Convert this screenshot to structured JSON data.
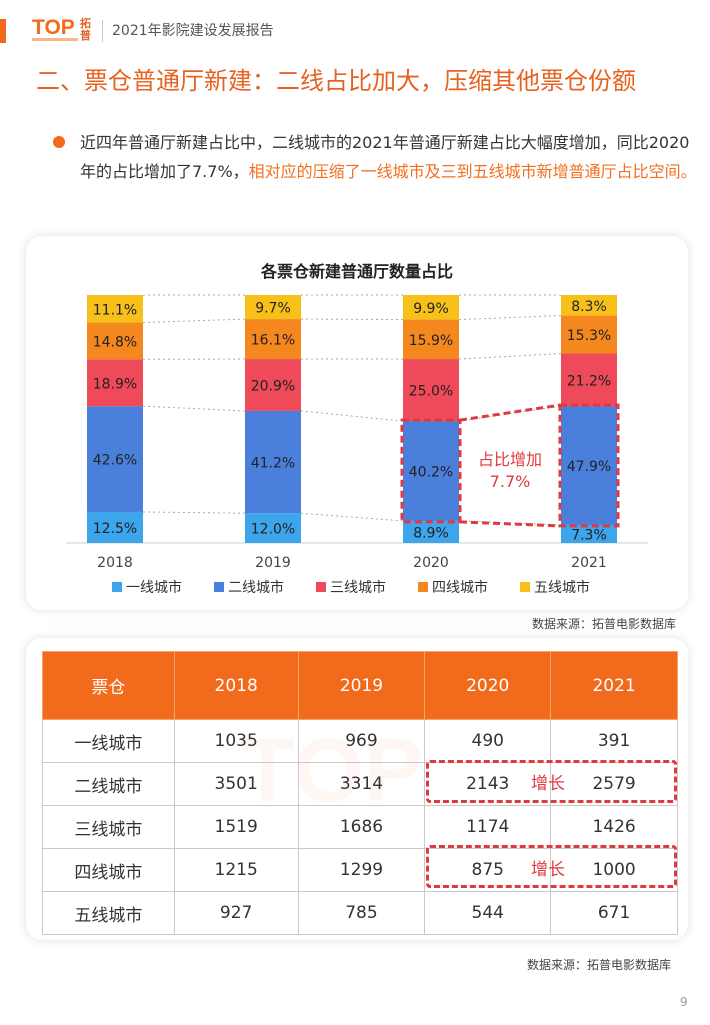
{
  "header": {
    "logo_text": "TOP",
    "logo_cn": "拓普",
    "report_title": "2021年影院建设发展报告"
  },
  "title": "二、票仓普通厅新建：二线占比加大，压缩其他票仓份额",
  "bullet": {
    "text_plain": "近四年普通厅新建占比中，二线城市的2021年普通厅新建占比大幅度增加，同比2020年的占比增加了7.7%，",
    "text_highlight": "相对应的压缩了一线城市及三到五线城市新增普通厅占比空间。"
  },
  "chart_data": {
    "type": "bar",
    "stacked": true,
    "title": "各票仓新建普通厅数量占比",
    "categories": [
      "2018",
      "2019",
      "2020",
      "2021"
    ],
    "series": [
      {
        "name": "一线城市",
        "color": "#3da5ec",
        "values": [
          12.5,
          12.0,
          8.9,
          7.3
        ]
      },
      {
        "name": "二线城市",
        "color": "#4a7fdc",
        "values": [
          42.6,
          41.2,
          40.2,
          47.9
        ]
      },
      {
        "name": "三线城市",
        "color": "#ef4a5a",
        "values": [
          18.9,
          20.9,
          25.0,
          21.2
        ]
      },
      {
        "name": "四线城市",
        "color": "#f5871f",
        "values": [
          14.8,
          16.1,
          15.9,
          15.3
        ]
      },
      {
        "name": "五线城市",
        "color": "#f8c01a",
        "values": [
          11.1,
          9.7,
          9.9,
          8.3
        ]
      }
    ],
    "annotation": {
      "line1": "占比增加",
      "line2": "7.7%"
    },
    "legend_position": "bottom",
    "unit": "%"
  },
  "chart_source": "数据来源：拓普电影数据库",
  "table": {
    "headers": [
      "票仓",
      "2018",
      "2019",
      "2020",
      "2021"
    ],
    "rows": [
      [
        "一线城市",
        "1035",
        "969",
        "490",
        "391"
      ],
      [
        "二线城市",
        "3501",
        "3314",
        "2143",
        "2579"
      ],
      [
        "三线城市",
        "1519",
        "1686",
        "1174",
        "1426"
      ],
      [
        "四线城市",
        "1215",
        "1299",
        "875",
        "1000"
      ],
      [
        "五线城市",
        "927",
        "785",
        "544",
        "671"
      ]
    ],
    "growth_label": "增长"
  },
  "table_source": "数据来源：拓普电影数据库",
  "page_number": "9",
  "colors": {
    "accent": "#f26b1d",
    "highlight_red": "#e0393f"
  }
}
